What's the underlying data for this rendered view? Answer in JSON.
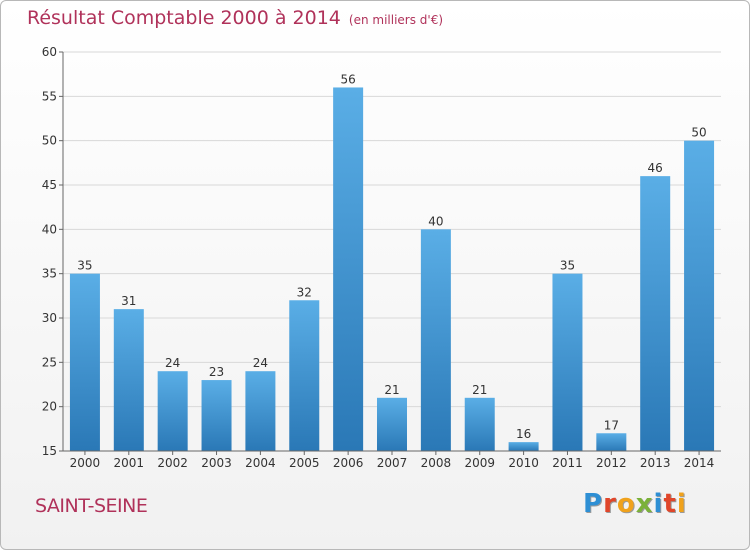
{
  "title": "Résultat Comptable 2000 à 2014",
  "unit": "(en milliers d'€)",
  "commune": "SAINT-SEINE",
  "logo": {
    "letters": [
      "P",
      "r",
      "o",
      "x",
      "i",
      "t",
      "i"
    ],
    "colors": [
      "#2e8fd4",
      "#e0462a",
      "#f0a21c",
      "#7bb13a",
      "#2e8fd4",
      "#e0462a",
      "#f0a21c"
    ]
  },
  "colors": {
    "bar_light": "#5aaee6",
    "bar_dark": "#2a78b6",
    "title": "#b0325a",
    "grid": "#d8d8d8"
  },
  "chart_data": {
    "type": "bar",
    "title": "Résultat Comptable 2000 à 2014",
    "xlabel": "",
    "ylabel": "",
    "categories": [
      "2000",
      "2001",
      "2002",
      "2003",
      "2004",
      "2005",
      "2006",
      "2007",
      "2008",
      "2009",
      "2010",
      "2011",
      "2012",
      "2013",
      "2014"
    ],
    "values": [
      35,
      31,
      24,
      23,
      24,
      32,
      56,
      21,
      40,
      21,
      16,
      35,
      17,
      46,
      50
    ],
    "ylim": [
      15,
      60
    ],
    "yticks": [
      15,
      20,
      25,
      30,
      35,
      40,
      45,
      50,
      55,
      60
    ],
    "grid": true,
    "data_labels": true
  }
}
